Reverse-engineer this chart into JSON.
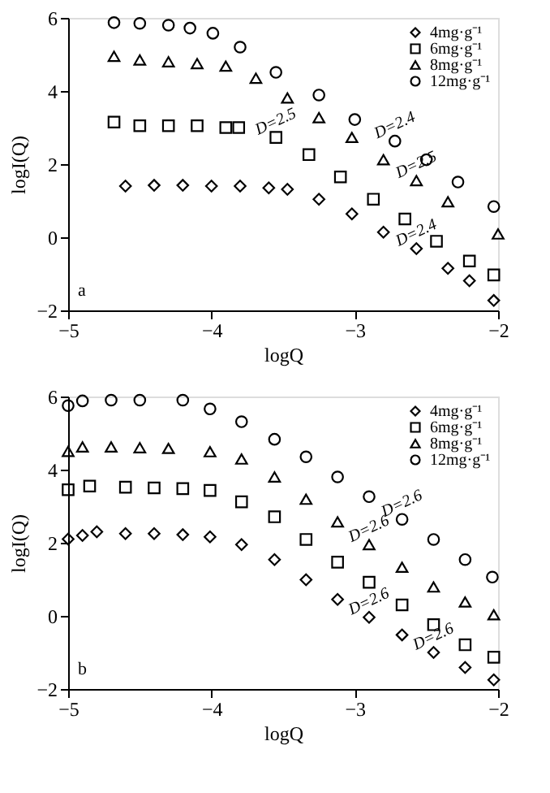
{
  "chart_data": [
    {
      "type": "scatter",
      "xlabel": "logQ",
      "ylabel": "logI(Q)",
      "xlim": [
        -5,
        -2
      ],
      "xticks": [
        -5,
        -4,
        -3,
        -2
      ],
      "ylim": [
        -2,
        6
      ],
      "yticks": [
        -2,
        0,
        2,
        4,
        6
      ],
      "grid": false,
      "legend": "top right",
      "annotations": [
        "a",
        {
          "text": "D=2.4",
          "x": -2.72,
          "y": 2.63
        },
        {
          "text": "D=2.5",
          "x": -3.55,
          "y": 2.73
        },
        {
          "text": "D=2.5",
          "x": -2.57,
          "y": 1.55
        },
        {
          "text": "D=2.4",
          "x": -2.57,
          "y": -0.31
        }
      ],
      "series": [
        {
          "name": "4mg·g⁻¹",
          "color": "#000000",
          "marker": "diamond",
          "x": [
            -4.6,
            -4.4,
            -4.2,
            -4.0,
            -3.8,
            -3.6,
            -3.47,
            -3.25,
            -3.02,
            -2.8,
            -2.57,
            -2.35,
            -2.2,
            -2.03
          ],
          "values": [
            1.4,
            1.42,
            1.42,
            1.4,
            1.4,
            1.35,
            1.31,
            1.04,
            0.64,
            0.14,
            -0.31,
            -0.85,
            -1.19,
            -1.73
          ]
        },
        {
          "name": "6mg·g⁻¹",
          "color": "#000000",
          "marker": "square",
          "x": [
            -4.68,
            -4.5,
            -4.3,
            -4.1,
            -3.9,
            -3.81,
            -3.55,
            -3.32,
            -3.1,
            -2.87,
            -2.65,
            -2.43,
            -2.2,
            -2.03
          ],
          "values": [
            3.15,
            3.05,
            3.05,
            3.05,
            3.0,
            3.0,
            2.73,
            2.26,
            1.65,
            1.04,
            0.5,
            -0.11,
            -0.65,
            -1.03
          ]
        },
        {
          "name": "8mg·g⁻¹",
          "color": "#000000",
          "marker": "triangle",
          "x": [
            -4.68,
            -4.5,
            -4.3,
            -4.1,
            -3.9,
            -3.69,
            -3.47,
            -3.25,
            -3.02,
            -2.8,
            -2.57,
            -2.35,
            -2.0
          ],
          "values": [
            4.95,
            4.85,
            4.8,
            4.75,
            4.68,
            4.35,
            3.81,
            3.27,
            2.73,
            2.12,
            1.55,
            0.97,
            0.09
          ]
        },
        {
          "name": "12mg·g⁻¹",
          "color": "#000000",
          "marker": "circle",
          "x": [
            -4.68,
            -4.5,
            -4.3,
            -4.15,
            -3.99,
            -3.8,
            -3.55,
            -3.25,
            -3.0,
            -2.72,
            -2.5,
            -2.28,
            -2.03
          ],
          "values": [
            5.87,
            5.85,
            5.8,
            5.72,
            5.58,
            5.2,
            4.51,
            3.89,
            3.22,
            2.63,
            2.12,
            1.51,
            0.84
          ]
        }
      ]
    },
    {
      "type": "scatter",
      "xlabel": "logQ",
      "ylabel": "logI(Q)",
      "xlim": [
        -5,
        -2
      ],
      "xticks": [
        -5,
        -4,
        -3,
        -2
      ],
      "ylim": [
        -2,
        6
      ],
      "yticks": [
        -2,
        0,
        2,
        4,
        6
      ],
      "grid": false,
      "legend": "top right",
      "annotations": [
        "b",
        {
          "text": "D=2.6",
          "x": -2.67,
          "y": 2.64
        },
        {
          "text": "D=2.6",
          "x": -2.9,
          "y": 1.95
        },
        {
          "text": "D=2.6",
          "x": -2.9,
          "y": -0.04
        },
        {
          "text": "D=2.6",
          "x": -2.45,
          "y": -1.0
        }
      ],
      "series": [
        {
          "name": "4mg·g⁻¹",
          "color": "#000000",
          "marker": "diamond",
          "x": [
            -5.0,
            -4.9,
            -4.8,
            -4.6,
            -4.4,
            -4.2,
            -4.01,
            -3.79,
            -3.56,
            -3.34,
            -3.12,
            -2.9,
            -2.67,
            -2.45,
            -2.23,
            -2.03
          ],
          "values": [
            2.1,
            2.2,
            2.3,
            2.25,
            2.25,
            2.22,
            2.16,
            1.95,
            1.54,
            0.99,
            0.45,
            -0.04,
            -0.52,
            -1.0,
            -1.41,
            -1.75
          ]
        },
        {
          "name": "6mg·g⁻¹",
          "color": "#000000",
          "marker": "square",
          "x": [
            -5.0,
            -4.85,
            -4.6,
            -4.4,
            -4.2,
            -4.01,
            -3.79,
            -3.56,
            -3.34,
            -3.12,
            -2.9,
            -2.67,
            -2.45,
            -2.23,
            -2.03
          ],
          "values": [
            3.45,
            3.55,
            3.52,
            3.5,
            3.48,
            3.43,
            3.12,
            2.71,
            2.09,
            1.47,
            0.92,
            0.3,
            -0.24,
            -0.79,
            -1.13
          ]
        },
        {
          "name": "8mg·g⁻¹",
          "color": "#000000",
          "marker": "triangle",
          "x": [
            -5.0,
            -4.9,
            -4.7,
            -4.5,
            -4.3,
            -4.01,
            -3.79,
            -3.56,
            -3.34,
            -3.12,
            -2.9,
            -2.67,
            -2.45,
            -2.23,
            -2.03
          ],
          "values": [
            4.5,
            4.62,
            4.62,
            4.6,
            4.58,
            4.49,
            4.29,
            3.8,
            3.19,
            2.57,
            1.95,
            1.33,
            0.79,
            0.38,
            0.03
          ]
        },
        {
          "name": "12mg·g⁻¹",
          "color": "#000000",
          "marker": "circle",
          "x": [
            -5.0,
            -4.9,
            -4.7,
            -4.5,
            -4.2,
            -4.01,
            -3.79,
            -3.56,
            -3.34,
            -3.12,
            -2.9,
            -2.67,
            -2.45,
            -2.23,
            -2.04
          ],
          "values": [
            5.75,
            5.88,
            5.9,
            5.9,
            5.9,
            5.66,
            5.31,
            4.83,
            4.35,
            3.8,
            3.26,
            2.64,
            2.09,
            1.54,
            1.06
          ]
        }
      ]
    }
  ]
}
